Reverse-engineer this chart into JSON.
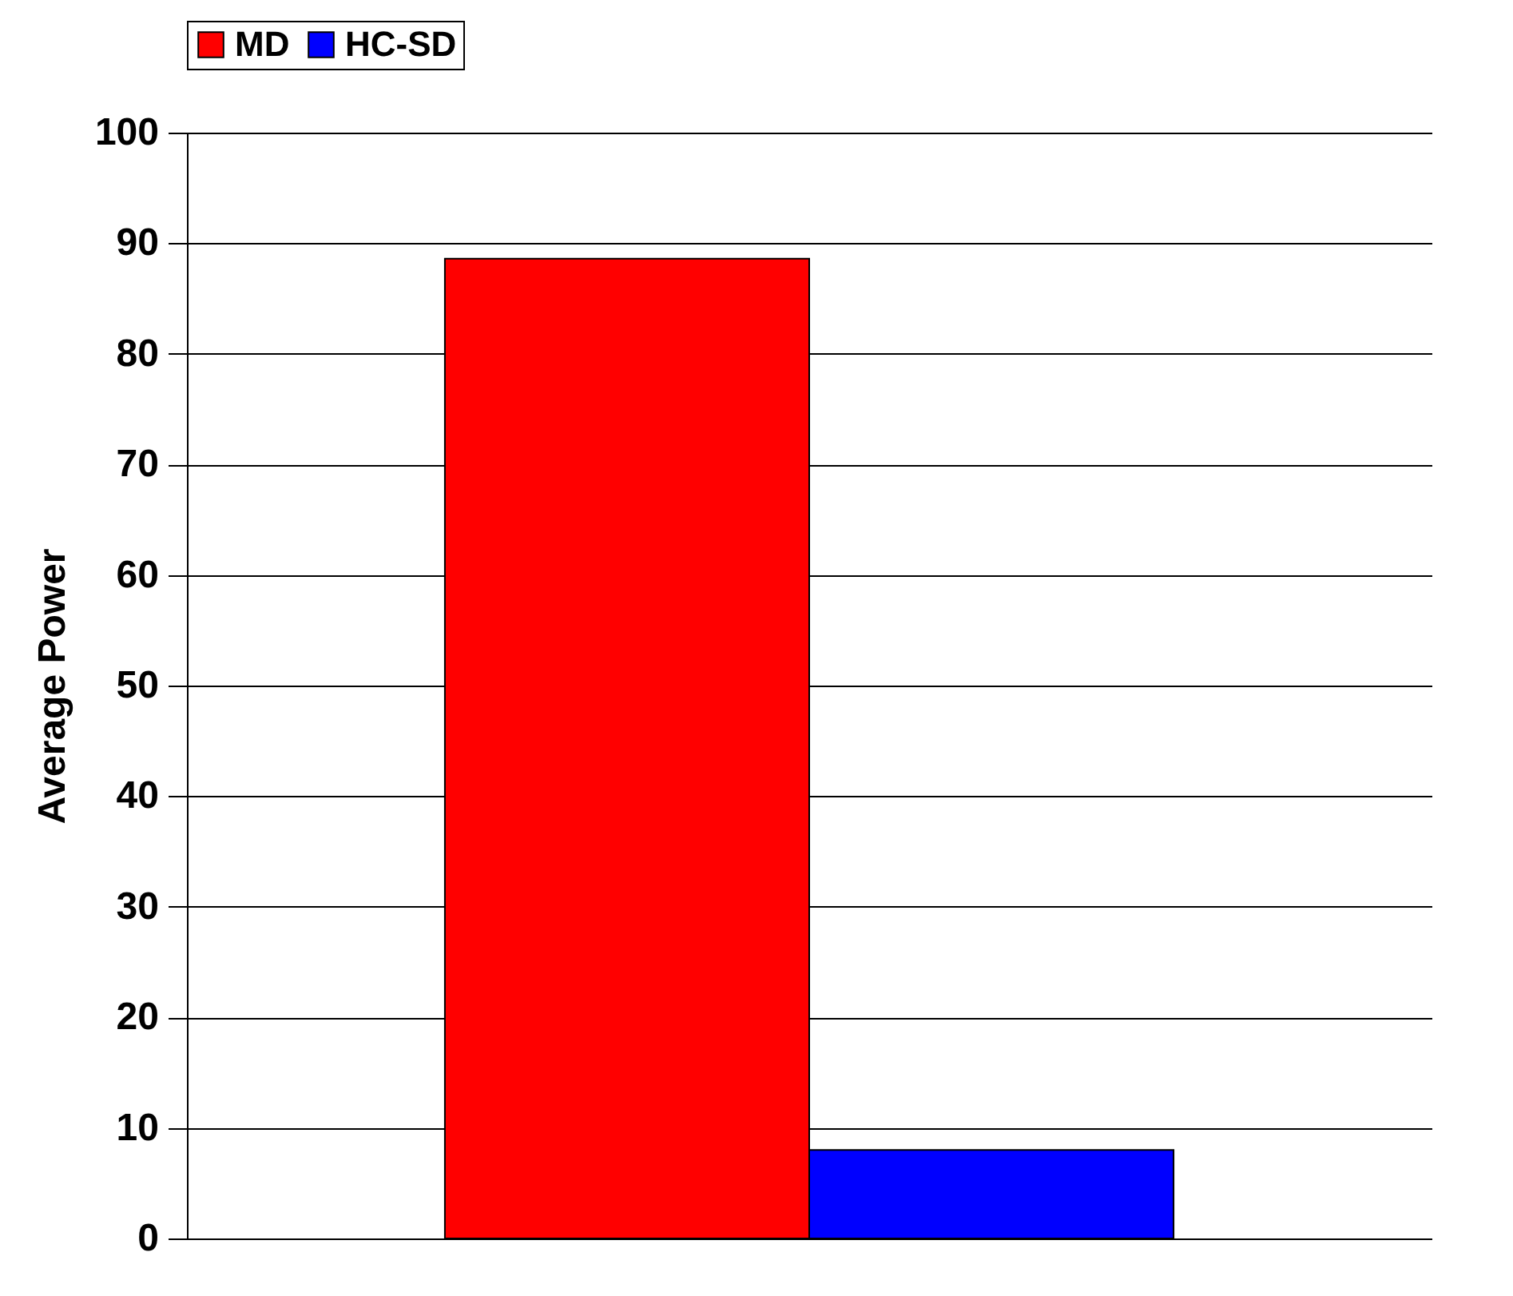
{
  "chart_data": {
    "type": "bar",
    "ylabel": "Average Power",
    "categories": [
      null
    ],
    "series": [
      {
        "name": "MD",
        "color": "#ff0000",
        "values": [
          88.6
        ]
      },
      {
        "name": "HC-SD",
        "color": "#0000ff",
        "values": [
          8
        ]
      }
    ],
    "ylim": [
      0,
      100
    ],
    "yticks": [
      0,
      10,
      20,
      30,
      40,
      50,
      60,
      70,
      80,
      90,
      100
    ],
    "grid": "y",
    "legend": "top"
  }
}
